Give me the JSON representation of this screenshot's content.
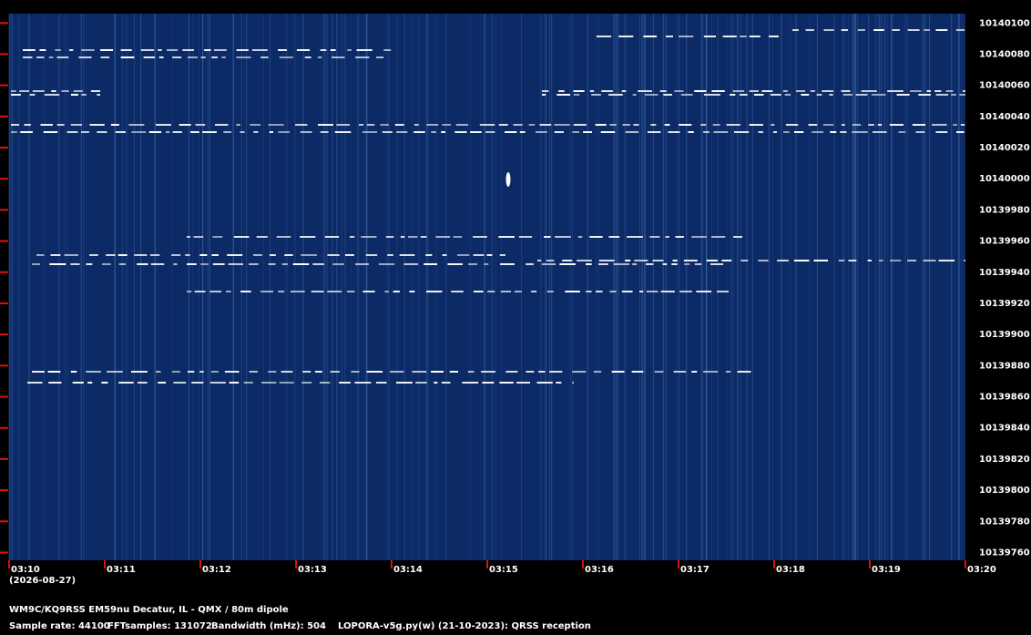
{
  "chart_data": {
    "type": "spectrogram",
    "categories": [
      "03:10",
      "03:11",
      "03:12",
      "03:13",
      "03:14",
      "03:15",
      "03:16",
      "03:17",
      "03:18",
      "03:19",
      "03:20"
    ],
    "date_label": "(2026-08-27)",
    "ylim": [
      10139755,
      10140106
    ],
    "yticks": [
      10139760,
      10139780,
      10139800,
      10139820,
      10139840,
      10139860,
      10139880,
      10139900,
      10139920,
      10139940,
      10139960,
      10139980,
      10140000,
      10140020,
      10140040,
      10140060,
      10140080,
      10140100
    ],
    "background_color": "#0b2a66",
    "tick_color": "#e01010",
    "footer": {
      "station": "WM9C/KQ9RSS EM59nu Decatur, IL - QMX / 80m dipole",
      "sample_rate": "Sample rate: 44100",
      "fft_samples": "FFTsamples: 131072",
      "bandwidth": "Bandwidth (mHz): 504",
      "software": "LOPORA-v5g.py(w) (21-10-2023): QRSS reception"
    }
  }
}
